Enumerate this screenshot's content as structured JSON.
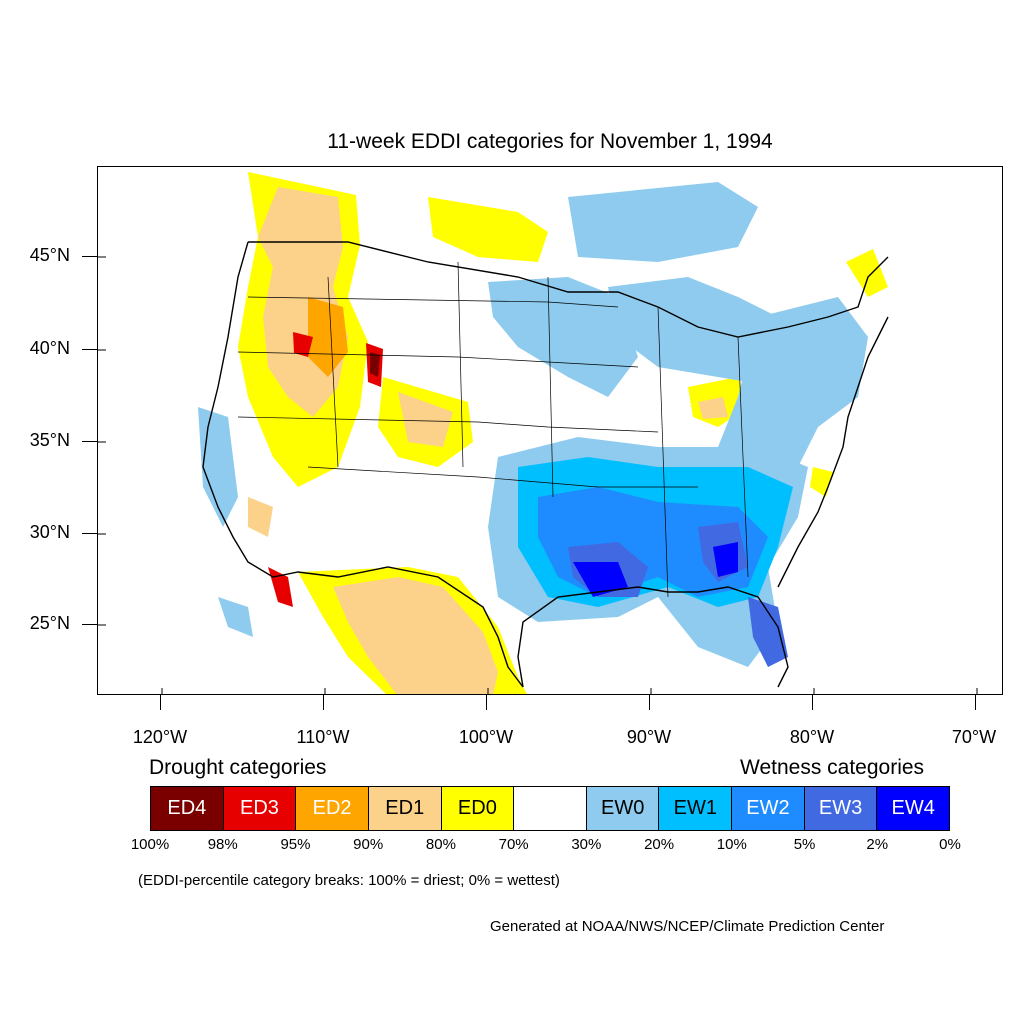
{
  "title": "11-week EDDI categories for November 1, 1994",
  "axes": {
    "latitude_labels": [
      "45°N",
      "40°N",
      "35°N",
      "30°N",
      "25°N"
    ],
    "longitude_labels": [
      "120°W",
      "110°W",
      "100°W",
      "90°W",
      "80°W",
      "70°W"
    ]
  },
  "legend": {
    "drought_heading": "Drought categories",
    "wetness_heading": "Wetness categories",
    "categories": [
      {
        "label": "ED4",
        "color": "#7a0000",
        "text_color": "#ffffff"
      },
      {
        "label": "ED3",
        "color": "#e60000",
        "text_color": "#ffffff"
      },
      {
        "label": "ED2",
        "color": "#ffa500",
        "text_color": "#ffffff"
      },
      {
        "label": "ED1",
        "color": "#fcd28a",
        "text_color": "#000000"
      },
      {
        "label": "ED0",
        "color": "#ffff00",
        "text_color": "#000000"
      },
      {
        "label": "",
        "color": "#ffffff",
        "text_color": "#000000"
      },
      {
        "label": "EW0",
        "color": "#8ecbee",
        "text_color": "#000000"
      },
      {
        "label": "EW1",
        "color": "#00bfff",
        "text_color": "#000000"
      },
      {
        "label": "EW2",
        "color": "#1e8cff",
        "text_color": "#ffffff"
      },
      {
        "label": "EW3",
        "color": "#4169e1",
        "text_color": "#ffffff"
      },
      {
        "label": "EW4",
        "color": "#0000ff",
        "text_color": "#ffffff"
      }
    ],
    "breaks": [
      "100%",
      "98%",
      "95%",
      "90%",
      "80%",
      "70%",
      "30%",
      "20%",
      "10%",
      "5%",
      "2%",
      "0%"
    ]
  },
  "note": "(EDDI-percentile category breaks: 100% = driest; 0% = wettest)",
  "credit": "Generated at NOAA/NWS/NCEP/Climate Prediction Center"
}
